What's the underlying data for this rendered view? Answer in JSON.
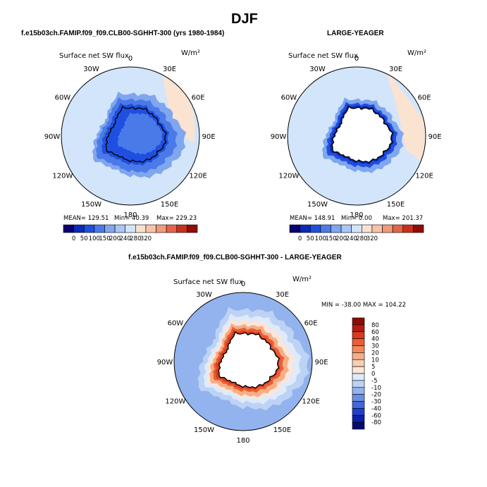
{
  "figure": {
    "title": "DJF"
  },
  "panels": [
    {
      "id": "model",
      "header": "f.e15b03ch.FAMIP.f09_f09.CLB00-SGHHT-300 (yrs 1980-1984)",
      "variable": "Surface net SW flux",
      "units": "W/m²",
      "stats": {
        "mean_label": "MEAN=",
        "mean": "129.51",
        "min_label": "Min=",
        "min": "40.39",
        "max_label": "Max=",
        "max": "229.23"
      },
      "colorbar_ticks": [
        "0",
        "50",
        "100",
        "150",
        "200",
        "240",
        "280",
        "320"
      ]
    },
    {
      "id": "obs",
      "header": "LARGE-YEAGER",
      "variable": "Surface net SW flux",
      "units": "W/m²",
      "stats": {
        "mean_label": "MEAN=",
        "mean": "148.91",
        "min_label": "Min=",
        "min": "0.00",
        "max_label": "Max=",
        "max": "201.37"
      },
      "colorbar_ticks": [
        "0",
        "50",
        "100",
        "150",
        "200",
        "240",
        "280",
        "320"
      ]
    },
    {
      "id": "diff",
      "header": "f.e15b03ch.FAMIP.f09_f09.CLB00-SGHHT-300 - LARGE-YEAGER",
      "variable": "Surface net SW flux",
      "units": "W/m²",
      "minmax": "MIN = -38.00 MAX = 104.22",
      "colorbar_ticks": [
        "80",
        "60",
        "40",
        "30",
        "20",
        "10",
        "5",
        "0",
        "-5",
        "-10",
        "-20",
        "-30",
        "-40",
        "-60",
        "-80"
      ]
    }
  ],
  "longitude_labels": [
    "0",
    "30E",
    "60E",
    "90E",
    "120E",
    "150E",
    "180",
    "150W",
    "120W",
    "90W",
    "60W",
    "30W"
  ],
  "colors": {
    "seq": [
      "#08006e",
      "#0a2ab8",
      "#1f4fe0",
      "#4a7ae8",
      "#7fa6ee",
      "#a9c6f4",
      "#d2e4fa",
      "#f7e2d2",
      "#f6c4a9",
      "#f19a7a",
      "#e4644a",
      "#c8301e",
      "#900c08"
    ],
    "div": [
      "#8f0a06",
      "#b51c10",
      "#d93a1e",
      "#ea5e34",
      "#f2875a",
      "#f6ae86",
      "#f9cdb0",
      "#fbe6d8",
      "#dfeafa",
      "#bcd3f5",
      "#93b3ee",
      "#6a8ee6",
      "#4167dd",
      "#1f3fcc",
      "#0b1fa8",
      "#050a70"
    ],
    "land": "#ffffff",
    "ocean_light": "#d3e5fa",
    "warm_light": "#fbe3d2"
  }
}
